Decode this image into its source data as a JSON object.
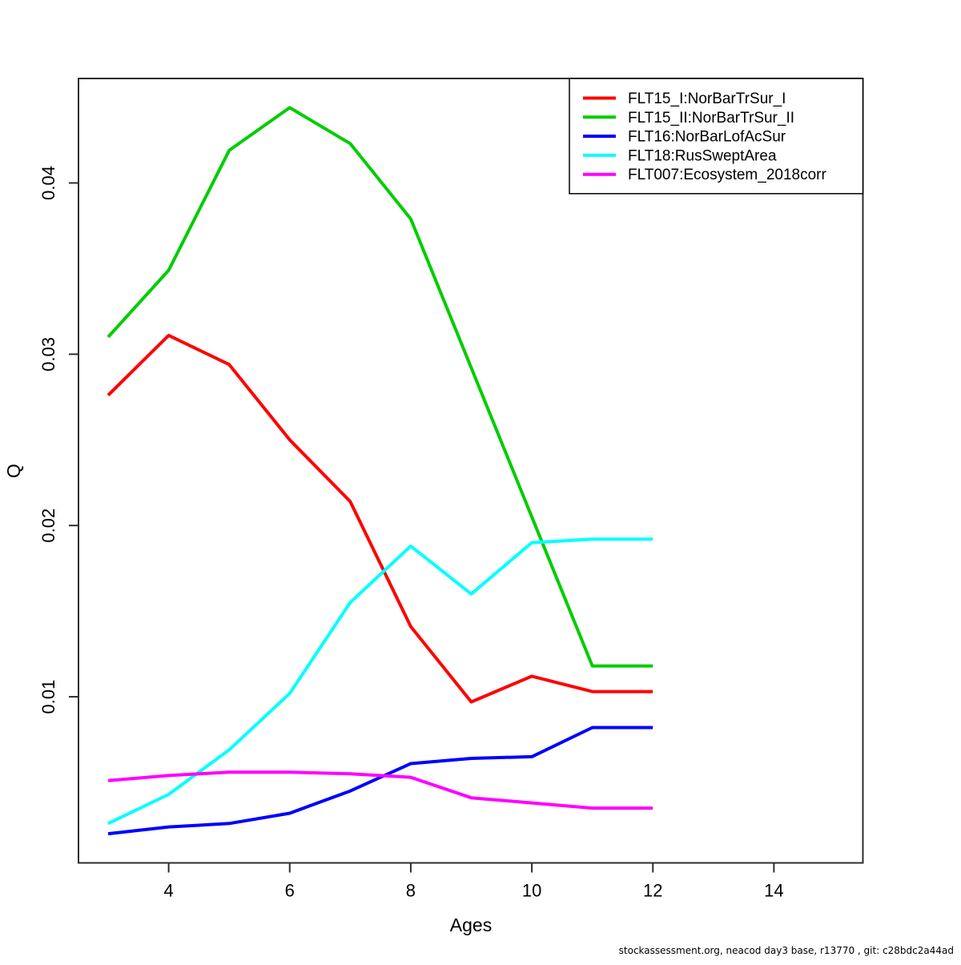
{
  "chart": {
    "xlabel": "Ages",
    "ylabel": "Q",
    "footer": "stockassessment.org, neacod day3 base, r13770 , git: c28bdc2a44ad"
  },
  "chart_data": {
    "type": "line",
    "title": "",
    "xlabel": "Ages",
    "ylabel": "Q",
    "x": [
      3,
      4,
      5,
      6,
      7,
      8,
      9,
      10,
      11,
      12
    ],
    "x_ticks": [
      4,
      6,
      8,
      10,
      12,
      14
    ],
    "y_ticks": [
      0.01,
      0.02,
      0.03,
      0.04
    ],
    "y_tick_labels": [
      "0.01",
      "0.02",
      "0.03",
      "0.04"
    ],
    "xlim": [
      2.51,
      15.47
    ],
    "ylim": [
      0.0003,
      0.0461
    ],
    "grid": false,
    "legend_position": "topright",
    "line_width": 4,
    "series": [
      {
        "name": "FLT15_I:NorBarTrSur_I",
        "color": "#FF0000",
        "values": [
          0.0276,
          0.0311,
          0.0294,
          0.025,
          0.0214,
          0.0141,
          0.0097,
          0.0112,
          0.0103,
          0.0103
        ]
      },
      {
        "name": "FLT15_II:NorBarTrSur_II",
        "color": "#00CD00",
        "values": [
          0.031,
          0.0349,
          0.0419,
          0.0444,
          0.0423,
          0.0379,
          0.0292,
          0.0205,
          0.0118,
          0.0118
        ]
      },
      {
        "name": "FLT16:NorBarLofAcSur",
        "color": "#0000FF",
        "values": [
          0.002,
          0.0024,
          0.0026,
          0.0032,
          0.0045,
          0.0061,
          0.0064,
          0.0065,
          0.0082,
          0.0082
        ]
      },
      {
        "name": "FLT18:RusSweptArea",
        "color": "#00FFFF",
        "values": [
          0.0026,
          0.0043,
          0.0069,
          0.0102,
          0.0155,
          0.0188,
          0.016,
          0.019,
          0.0192,
          0.0192
        ]
      },
      {
        "name": "FLT007:Ecosystem_2018corr",
        "color": "#FF00FF",
        "values": [
          0.0051,
          0.0054,
          0.0056,
          0.0056,
          0.0055,
          0.0053,
          0.0041,
          0.0038,
          0.0035,
          0.0035
        ]
      }
    ]
  }
}
